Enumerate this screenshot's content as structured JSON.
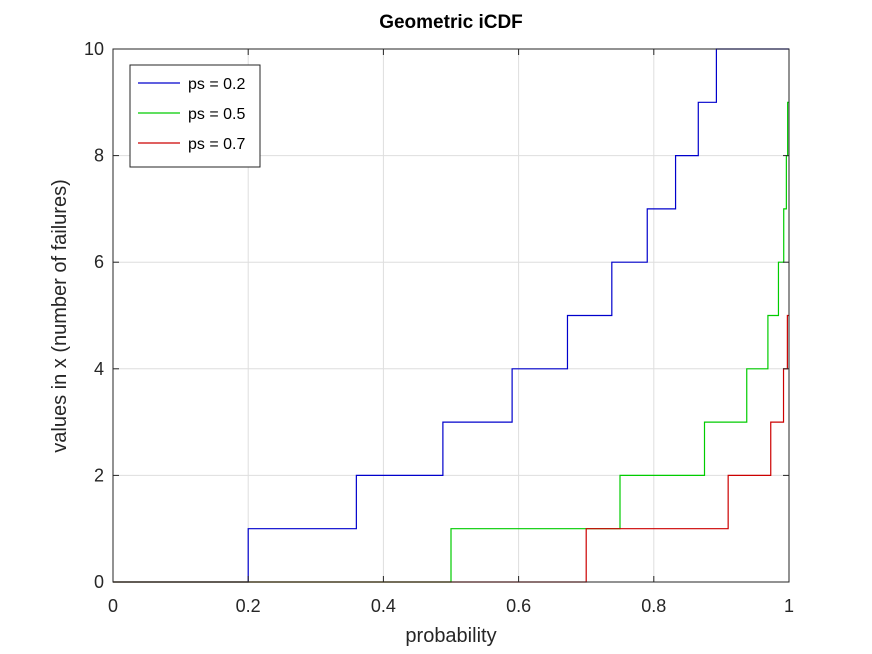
{
  "chart_data": {
    "type": "line",
    "title": "Geometric iCDF",
    "xlabel": "probability",
    "ylabel": "values in x (number of failures)",
    "xlim": [
      0,
      1
    ],
    "ylim": [
      0,
      10
    ],
    "xticks": [
      0,
      0.2,
      0.4,
      0.6,
      0.8,
      1
    ],
    "xtick_labels": [
      "0",
      "0.2",
      "0.4",
      "0.6",
      "0.8",
      "1"
    ],
    "yticks": [
      0,
      2,
      4,
      6,
      8,
      10
    ],
    "ytick_labels": [
      "0",
      "2",
      "4",
      "6",
      "8",
      "10"
    ],
    "grid": true,
    "legend_position": "top-left",
    "series": [
      {
        "name": "ps = 0.2",
        "color": "#0000cc",
        "steps_x": [
          0.2,
          0.36,
          0.488,
          0.5904,
          0.6723,
          0.7379,
          0.7903,
          0.8322,
          0.8658,
          0.8926
        ],
        "values": [
          1,
          2,
          3,
          4,
          5,
          6,
          7,
          8,
          9,
          10
        ]
      },
      {
        "name": "ps = 0.5",
        "color": "#00cc00",
        "steps_x": [
          0.5,
          0.75,
          0.875,
          0.9375,
          0.9688,
          0.9844,
          0.9922,
          0.9961,
          0.998
        ],
        "values": [
          1,
          2,
          3,
          4,
          5,
          6,
          7,
          8,
          9
        ]
      },
      {
        "name": "ps = 0.7",
        "color": "#cc0000",
        "steps_x": [
          0.7,
          0.91,
          0.973,
          0.9919,
          0.9976
        ],
        "values": [
          1,
          2,
          3,
          4,
          5
        ]
      }
    ]
  }
}
